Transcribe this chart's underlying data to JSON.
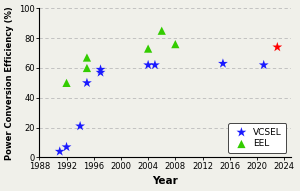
{
  "vcsel_data": [
    [
      1991,
      4
    ],
    [
      1992,
      7
    ],
    [
      1994,
      21
    ],
    [
      1995,
      50
    ],
    [
      1997,
      57
    ],
    [
      1997,
      59
    ],
    [
      2004,
      62
    ],
    [
      2005,
      62
    ],
    [
      2015,
      63
    ],
    [
      2021,
      62
    ],
    [
      2023,
      74
    ]
  ],
  "eel_data": [
    [
      1992,
      50
    ],
    [
      1995,
      60
    ],
    [
      1995,
      67
    ],
    [
      2004,
      73
    ],
    [
      2006,
      85
    ],
    [
      2008,
      76
    ]
  ],
  "vcsel_color": "#1a1aff",
  "eel_color": "#33cc00",
  "last_vcsel_color": "#ff0000",
  "xlabel": "Year",
  "ylabel": "Power Conversion Efficiency (%)",
  "xlim": [
    1988,
    2025
  ],
  "ylim": [
    0,
    100
  ],
  "xticks": [
    1988,
    1992,
    1996,
    2000,
    2004,
    2008,
    2012,
    2016,
    2020,
    2024
  ],
  "yticks": [
    0,
    20,
    40,
    60,
    80,
    100
  ],
  "grid_color": "#bbbbbb",
  "background_color": "#f0f0ea"
}
